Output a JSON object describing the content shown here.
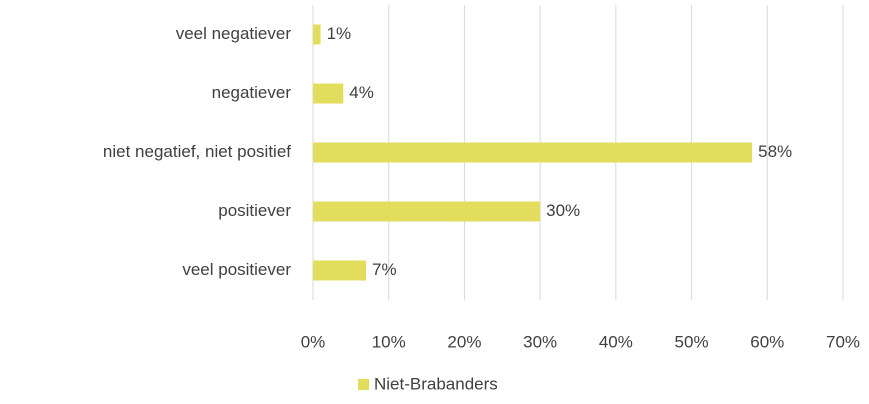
{
  "chart_data": {
    "type": "bar",
    "orientation": "horizontal",
    "categories": [
      "veel negatiever",
      "negatiever",
      "niet negatief, niet positief",
      "positiever",
      "veel positiever"
    ],
    "series": [
      {
        "name": "Niet-Brabanders",
        "color": "#e2dd5c",
        "values": [
          1,
          4,
          58,
          30,
          7
        ],
        "value_labels": [
          "1%",
          "4%",
          "58%",
          "30%",
          "7%"
        ]
      }
    ],
    "xlim": [
      0,
      70
    ],
    "xticks": [
      {
        "value": 0,
        "label": "0%"
      },
      {
        "value": 10,
        "label": "10%"
      },
      {
        "value": 20,
        "label": "20%"
      },
      {
        "value": 30,
        "label": "30%"
      },
      {
        "value": 40,
        "label": "40%"
      },
      {
        "value": 50,
        "label": "50%"
      },
      {
        "value": 60,
        "label": "60%"
      },
      {
        "value": 70,
        "label": "70%"
      }
    ],
    "grid": true,
    "legend": "bottom"
  }
}
